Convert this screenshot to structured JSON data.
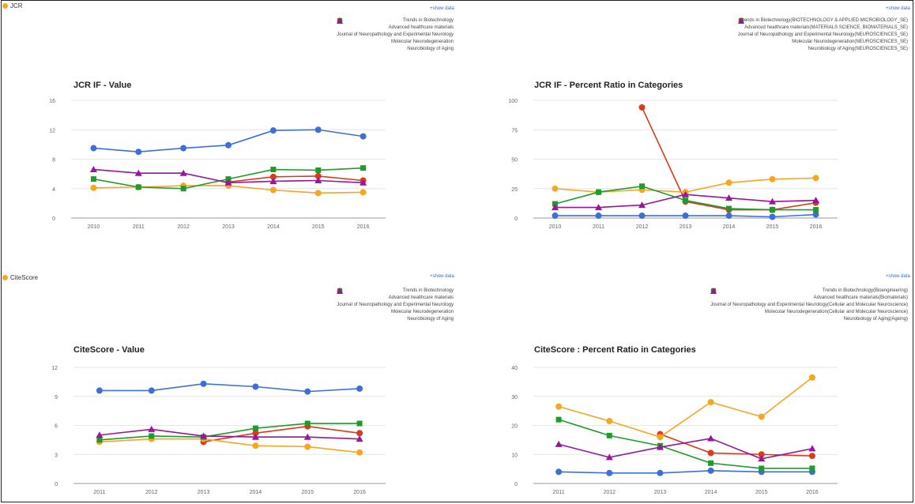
{
  "page": {
    "sections": [
      {
        "label": "JCR",
        "show_data": "+show data"
      },
      {
        "label": "CiteScore",
        "show_data": "+show data"
      }
    ]
  },
  "colors": {
    "blue": "#3d6fd6",
    "red": "#db3a1b",
    "orange": "#f6a623",
    "green": "#1f9a2b",
    "purple": "#99159a",
    "grid": "#e6e6e6",
    "axis_text": "#666666"
  },
  "chart_data": [
    {
      "type": "line",
      "title": "JCR IF - Value",
      "categories": [
        "2010",
        "2011",
        "2012",
        "2013",
        "2014",
        "2015",
        "2016"
      ],
      "ylim": [
        0,
        16
      ],
      "yticks": [
        "0",
        "4",
        "8",
        "12",
        "16"
      ],
      "grid": true,
      "legend_position": "top-right",
      "series": [
        {
          "name": "Trends in Biotechnology",
          "marker": "circle",
          "color": "blue",
          "values": [
            9.5,
            9.0,
            9.5,
            9.9,
            11.9,
            12.0,
            11.1
          ]
        },
        {
          "name": "Advanced healthcare materials",
          "marker": "circle",
          "color": "red",
          "values": [
            null,
            null,
            null,
            4.9,
            5.6,
            5.7,
            5.1
          ]
        },
        {
          "name": "Journal of Neuropathology and Experimental Neurology",
          "marker": "circle",
          "color": "orange",
          "values": [
            4.1,
            4.2,
            4.4,
            4.4,
            3.8,
            3.4,
            3.5
          ]
        },
        {
          "name": "Molecular Neurodegeneration",
          "marker": "square",
          "color": "green",
          "values": [
            5.3,
            4.2,
            4.0,
            5.3,
            6.6,
            6.5,
            6.8
          ]
        },
        {
          "name": "Neurobiology of Aging",
          "marker": "triangle",
          "color": "purple",
          "values": [
            6.6,
            6.1,
            6.1,
            4.8,
            5.0,
            5.1,
            4.8
          ]
        }
      ]
    },
    {
      "type": "line",
      "title": "JCR IF - Percent Ratio in Categories",
      "categories": [
        "2010",
        "2011",
        "2012",
        "2013",
        "2014",
        "2015",
        "2016"
      ],
      "ylim": [
        0,
        100
      ],
      "yticks": [
        "0",
        "25",
        "50",
        "75",
        "100"
      ],
      "grid": true,
      "legend_position": "top-right",
      "series": [
        {
          "name": "Trends in Biotechnology(BIOTECHNOLOGY & APPLIED MICROBIOLOGY_SE)",
          "marker": "circle",
          "color": "blue",
          "values": [
            2,
            2,
            2,
            2,
            2,
            1,
            3
          ]
        },
        {
          "name": "Advanced healthcare materials(MATERIALS SCIENCE, BIOMATERIALS_SE)",
          "marker": "circle",
          "color": "red",
          "values": [
            null,
            null,
            94,
            14,
            7,
            7,
            13
          ]
        },
        {
          "name": "Journal of Neuropathology and Experimental Neurology(NEUROSCIENCES_SE)",
          "marker": "circle",
          "color": "orange",
          "values": [
            25,
            22,
            24,
            22,
            30,
            33,
            34
          ]
        },
        {
          "name": "Molecular Neurodegeneration(NEUROSCIENCES_SE)",
          "marker": "square",
          "color": "green",
          "values": [
            12,
            22,
            27,
            15,
            8,
            7,
            7
          ]
        },
        {
          "name": "Neurobiology of Aging(NEUROSCIENCES_SE)",
          "marker": "triangle",
          "color": "purple",
          "values": [
            9,
            9,
            11,
            20,
            17,
            14,
            15
          ]
        }
      ]
    },
    {
      "type": "line",
      "title": "CiteScore - Value",
      "categories": [
        "2011",
        "2012",
        "2013",
        "2014",
        "2015",
        "2016"
      ],
      "ylim": [
        0,
        12
      ],
      "yticks": [
        "0",
        "3",
        "6",
        "9",
        "12"
      ],
      "grid": true,
      "legend_position": "top-right",
      "series": [
        {
          "name": "Trends in Biotechnology",
          "marker": "circle",
          "color": "blue",
          "values": [
            9.6,
            9.6,
            10.3,
            10.0,
            9.5,
            9.8
          ]
        },
        {
          "name": "Advanced healthcare materials",
          "marker": "circle",
          "color": "red",
          "values": [
            null,
            null,
            4.3,
            5.2,
            5.9,
            5.2
          ]
        },
        {
          "name": "Journal of Neuropathology and Experimental Neurology",
          "marker": "circle",
          "color": "orange",
          "values": [
            4.3,
            4.6,
            4.6,
            3.9,
            3.8,
            3.2
          ]
        },
        {
          "name": "Molecular Neurodegeneration",
          "marker": "square",
          "color": "green",
          "values": [
            4.5,
            4.9,
            4.8,
            5.7,
            6.2,
            6.2
          ]
        },
        {
          "name": "Neurobiology of Aging",
          "marker": "triangle",
          "color": "purple",
          "values": [
            5.0,
            5.6,
            4.9,
            4.8,
            4.8,
            4.6
          ]
        }
      ]
    },
    {
      "type": "line",
      "title": "CiteScore : Percent Ratio in Categories",
      "categories": [
        "2011",
        "2012",
        "2013",
        "2014",
        "2015",
        "2016"
      ],
      "ylim": [
        0,
        40
      ],
      "yticks": [
        "0",
        "10",
        "20",
        "30",
        "40"
      ],
      "grid": true,
      "legend_position": "top-right",
      "series": [
        {
          "name": "Trends in Biotechnology(Bioengineering)",
          "marker": "circle",
          "color": "blue",
          "values": [
            4,
            3.6,
            3.6,
            4.4,
            4.0,
            4.0
          ]
        },
        {
          "name": "Advanced healthcare materials(Biomaterials)",
          "marker": "circle",
          "color": "red",
          "values": [
            null,
            null,
            17,
            10.5,
            10,
            9.5
          ]
        },
        {
          "name": "Journal of Neuropathology and Experimental Neurology(Cellular and Molecular Neuroscience)",
          "marker": "circle",
          "color": "orange",
          "values": [
            26.5,
            21.5,
            16,
            28,
            23,
            36.5
          ]
        },
        {
          "name": "Molecular Neurodegeneration(Cellular and Molecular Neuroscience)",
          "marker": "square",
          "color": "green",
          "values": [
            22,
            16.5,
            13,
            7,
            5.2,
            5.2
          ]
        },
        {
          "name": "Neurobiology of Aging(Ageing)",
          "marker": "triangle",
          "color": "purple",
          "values": [
            13.5,
            9,
            12.5,
            15.5,
            8.5,
            12
          ]
        }
      ]
    }
  ]
}
